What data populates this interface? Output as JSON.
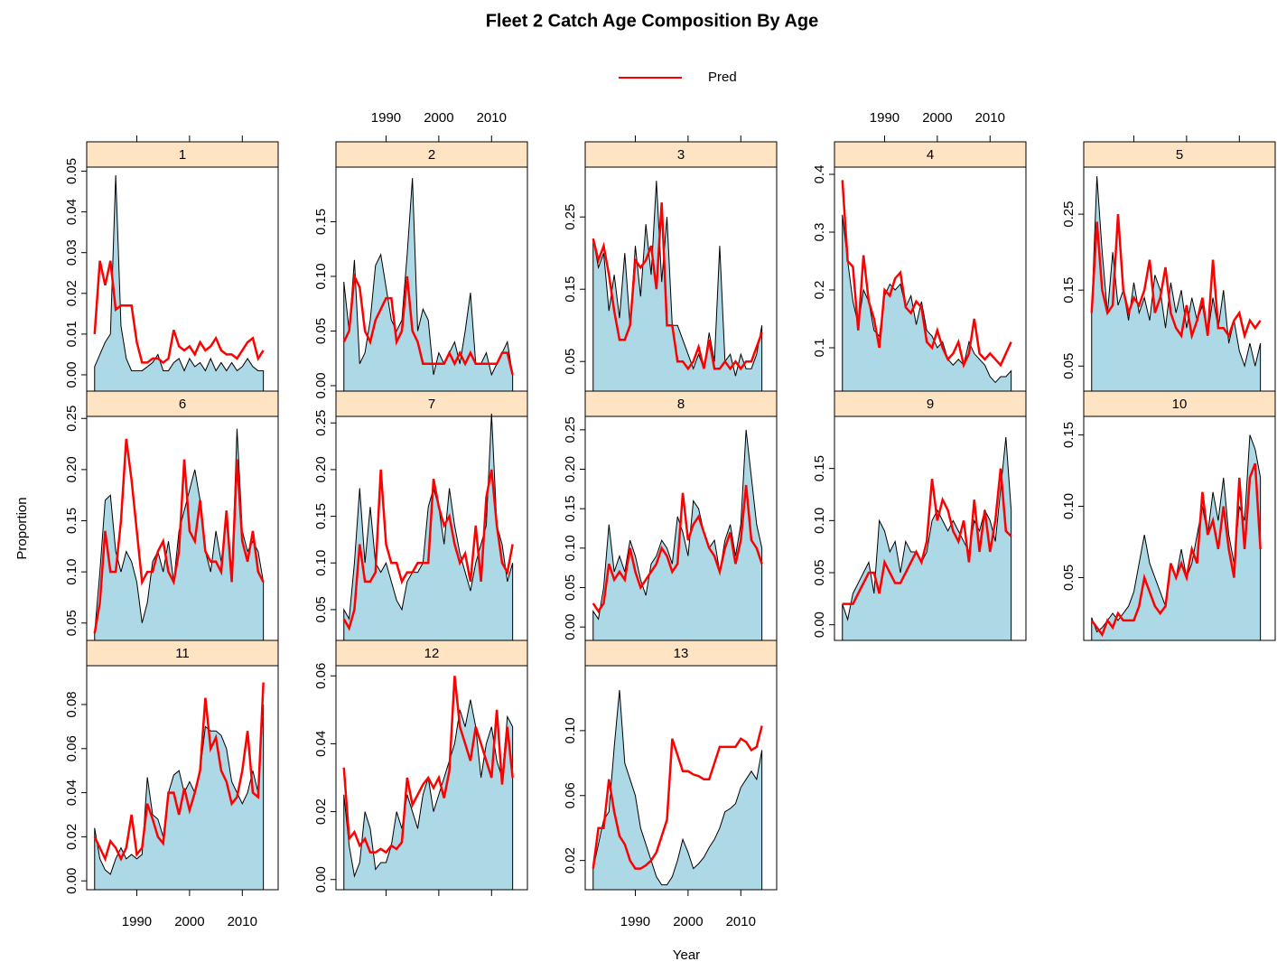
{
  "chart_data": {
    "type": "lattice-area-line",
    "title": "Fleet 2  Catch Age Composition By Age",
    "xlabel": "Year",
    "ylabel": "Proportion",
    "legend": {
      "name": "Pred",
      "color": "#ff0000",
      "position": "top"
    },
    "fill": "#add8e6",
    "x": [
      1982,
      1983,
      1984,
      1985,
      1986,
      1987,
      1988,
      1989,
      1990,
      1991,
      1992,
      1993,
      1994,
      1995,
      1996,
      1997,
      1998,
      1999,
      2000,
      2001,
      2002,
      2003,
      2004,
      2005,
      2006,
      2007,
      2008,
      2009,
      2010,
      2011,
      2012,
      2013,
      2014
    ],
    "xlim": [
      1980.5,
      2016.8
    ],
    "xticks": [
      1990,
      2000,
      2010
    ],
    "panels": [
      {
        "label": "1",
        "ylim": [
          -0.004,
          0.051
        ],
        "yticks": [
          {
            "value": 0,
            "label": "0.00"
          },
          0.01,
          0.02,
          0.03,
          0.04,
          0.05
        ],
        "observed": [
          0.002,
          0.005,
          0.008,
          0.01,
          0.049,
          0.012,
          0.004,
          0.001,
          0.001,
          0.001,
          0.002,
          0.003,
          0.005,
          0.001,
          0.001,
          0.003,
          0.004,
          0.001,
          0.004,
          0.002,
          0.003,
          0.001,
          0.004,
          0.001,
          0.003,
          0.001,
          0.003,
          0.001,
          0.002,
          0.004,
          0.002,
          0.001,
          0.001
        ],
        "predicted": [
          0.01,
          0.028,
          0.022,
          0.028,
          0.016,
          0.017,
          0.017,
          0.017,
          0.008,
          0.003,
          0.003,
          0.004,
          0.004,
          0.003,
          0.004,
          0.011,
          0.007,
          0.006,
          0.007,
          0.005,
          0.008,
          0.006,
          0.007,
          0.009,
          0.006,
          0.005,
          0.005,
          0.004,
          0.006,
          0.008,
          0.009,
          0.004,
          0.006
        ]
      },
      {
        "label": "2",
        "ylim": [
          -0.005,
          0.2
        ],
        "yticks": [
          {
            "value": 0,
            "label": "0.00"
          },
          0.05,
          {
            "value": 0.1,
            "label": "0.10"
          },
          0.15
        ],
        "observed": [
          0.095,
          0.05,
          0.115,
          0.02,
          0.03,
          0.06,
          0.11,
          0.12,
          0.09,
          0.06,
          0.05,
          0.06,
          0.12,
          0.19,
          0.05,
          0.07,
          0.06,
          0.01,
          0.03,
          0.02,
          0.03,
          0.04,
          0.02,
          0.05,
          0.085,
          0.02,
          0.02,
          0.03,
          0.01,
          0.02,
          0.03,
          0.04,
          0.01
        ],
        "predicted": [
          0.04,
          0.05,
          0.1,
          0.09,
          0.05,
          0.04,
          0.06,
          0.07,
          0.08,
          0.08,
          0.04,
          0.05,
          0.1,
          0.05,
          0.04,
          0.02,
          0.02,
          0.02,
          0.02,
          0.02,
          0.03,
          0.02,
          0.03,
          0.02,
          0.03,
          0.02,
          0.02,
          0.02,
          0.02,
          0.02,
          0.03,
          0.03,
          0.01
        ]
      },
      {
        "label": "3",
        "ylim": [
          0.009,
          0.319
        ],
        "yticks": [
          0.05,
          0.15,
          0.25
        ],
        "observed": [
          0.22,
          0.18,
          0.2,
          0.12,
          0.17,
          0.11,
          0.2,
          0.1,
          0.21,
          0.14,
          0.24,
          0.17,
          0.3,
          0.16,
          0.25,
          0.1,
          0.1,
          0.08,
          0.06,
          0.04,
          0.06,
          0.04,
          0.09,
          0.05,
          0.21,
          0.05,
          0.06,
          0.03,
          0.06,
          0.04,
          0.04,
          0.06,
          0.1
        ],
        "predicted": [
          0.22,
          0.19,
          0.21,
          0.17,
          0.12,
          0.08,
          0.08,
          0.1,
          0.19,
          0.18,
          0.19,
          0.21,
          0.15,
          0.27,
          0.1,
          0.1,
          0.05,
          0.05,
          0.04,
          0.05,
          0.07,
          0.04,
          0.08,
          0.04,
          0.04,
          0.05,
          0.04,
          0.05,
          0.04,
          0.05,
          0.05,
          0.07,
          0.09
        ]
      },
      {
        "label": "4",
        "ylim": [
          0.025,
          0.4125
        ],
        "yticks": [
          0.1,
          0.2,
          0.3,
          0.4
        ],
        "observed": [
          0.33,
          0.25,
          0.18,
          0.14,
          0.2,
          0.18,
          0.13,
          0.12,
          0.19,
          0.21,
          0.2,
          0.21,
          0.17,
          0.19,
          0.14,
          0.18,
          0.13,
          0.12,
          0.1,
          0.11,
          0.08,
          0.07,
          0.08,
          0.07,
          0.11,
          0.09,
          0.08,
          0.07,
          0.05,
          0.04,
          0.05,
          0.05,
          0.06
        ],
        "predicted": [
          0.39,
          0.25,
          0.24,
          0.13,
          0.26,
          0.18,
          0.15,
          0.1,
          0.2,
          0.19,
          0.22,
          0.23,
          0.17,
          0.16,
          0.18,
          0.17,
          0.11,
          0.1,
          0.13,
          0.1,
          0.08,
          0.09,
          0.11,
          0.07,
          0.09,
          0.15,
          0.09,
          0.08,
          0.09,
          0.08,
          0.07,
          0.09,
          0.11
        ]
      },
      {
        "label": "5",
        "ylim": [
          0.017,
          0.312
        ],
        "yticks": [
          0.05,
          0.15,
          0.25
        ],
        "observed": [
          0.12,
          0.3,
          0.2,
          0.12,
          0.2,
          0.13,
          0.15,
          0.11,
          0.16,
          0.12,
          0.14,
          0.11,
          0.17,
          0.15,
          0.1,
          0.16,
          0.12,
          0.15,
          0.1,
          0.14,
          0.11,
          0.13,
          0.09,
          0.14,
          0.1,
          0.15,
          0.08,
          0.11,
          0.07,
          0.05,
          0.08,
          0.05,
          0.08
        ],
        "predicted": [
          0.12,
          0.24,
          0.15,
          0.12,
          0.13,
          0.25,
          0.15,
          0.12,
          0.14,
          0.13,
          0.15,
          0.19,
          0.12,
          0.14,
          0.18,
          0.12,
          0.1,
          0.09,
          0.13,
          0.09,
          0.11,
          0.14,
          0.09,
          0.19,
          0.1,
          0.1,
          0.09,
          0.11,
          0.12,
          0.09,
          0.11,
          0.1,
          0.11
        ]
      },
      {
        "label": "6",
        "ylim": [
          0.033,
          0.252
        ],
        "yticks": [
          0.05,
          {
            "value": 0.1,
            "label": "0.10"
          },
          0.15,
          {
            "value": 0.2,
            "label": "0.20"
          },
          0.25
        ],
        "observed": [
          0.04,
          0.1,
          0.17,
          0.175,
          0.12,
          0.1,
          0.12,
          0.11,
          0.09,
          0.05,
          0.07,
          0.11,
          0.12,
          0.1,
          0.13,
          0.09,
          0.14,
          0.16,
          0.18,
          0.2,
          0.17,
          0.12,
          0.1,
          0.14,
          0.11,
          0.15,
          0.09,
          0.24,
          0.14,
          0.12,
          0.13,
          0.12,
          0.09
        ],
        "predicted": [
          0.04,
          0.07,
          0.14,
          0.1,
          0.1,
          0.15,
          0.23,
          0.19,
          0.14,
          0.09,
          0.1,
          0.1,
          0.12,
          0.13,
          0.1,
          0.09,
          0.12,
          0.21,
          0.14,
          0.13,
          0.17,
          0.12,
          0.11,
          0.11,
          0.1,
          0.16,
          0.09,
          0.21,
          0.13,
          0.11,
          0.14,
          0.1,
          0.09
        ]
      },
      {
        "label": "7",
        "ylim": [
          0.017,
          0.257
        ],
        "yticks": [
          0.05,
          {
            "value": 0.1,
            "label": "0.10"
          },
          0.15,
          {
            "value": 0.2,
            "label": "0.20"
          },
          0.25
        ],
        "observed": [
          0.05,
          0.04,
          0.1,
          0.18,
          0.1,
          0.16,
          0.1,
          0.09,
          0.1,
          0.08,
          0.06,
          0.05,
          0.08,
          0.09,
          0.09,
          0.1,
          0.16,
          0.18,
          0.16,
          0.12,
          0.18,
          0.14,
          0.11,
          0.09,
          0.07,
          0.1,
          0.12,
          0.14,
          0.26,
          0.14,
          0.12,
          0.08,
          0.1
        ],
        "predicted": [
          0.04,
          0.03,
          0.05,
          0.12,
          0.08,
          0.08,
          0.09,
          0.2,
          0.12,
          0.1,
          0.1,
          0.08,
          0.09,
          0.09,
          0.1,
          0.1,
          0.1,
          0.19,
          0.16,
          0.14,
          0.15,
          0.12,
          0.1,
          0.11,
          0.08,
          0.14,
          0.08,
          0.17,
          0.2,
          0.14,
          0.1,
          0.09,
          0.12
        ]
      },
      {
        "label": "8",
        "ylim": [
          -0.017,
          0.267
        ],
        "yticks": [
          {
            "value": 0,
            "label": "0.00"
          },
          0.05,
          {
            "value": 0.1,
            "label": "0.10"
          },
          0.15,
          {
            "value": 0.2,
            "label": "0.20"
          },
          0.25
        ],
        "observed": [
          0.02,
          0.01,
          0.05,
          0.13,
          0.07,
          0.09,
          0.07,
          0.11,
          0.09,
          0.06,
          0.04,
          0.08,
          0.09,
          0.11,
          0.1,
          0.08,
          0.14,
          0.12,
          0.09,
          0.16,
          0.15,
          0.12,
          0.1,
          0.11,
          0.07,
          0.11,
          0.13,
          0.09,
          0.13,
          0.25,
          0.19,
          0.13,
          0.1
        ],
        "predicted": [
          0.03,
          0.02,
          0.03,
          0.08,
          0.06,
          0.07,
          0.06,
          0.1,
          0.07,
          0.05,
          0.06,
          0.07,
          0.08,
          0.1,
          0.09,
          0.07,
          0.08,
          0.17,
          0.11,
          0.13,
          0.14,
          0.12,
          0.1,
          0.09,
          0.07,
          0.1,
          0.12,
          0.08,
          0.11,
          0.18,
          0.11,
          0.1,
          0.08
        ]
      },
      {
        "label": "9",
        "ylim": [
          -0.015,
          0.2
        ],
        "yticks": [
          {
            "value": 0,
            "label": "0.00"
          },
          0.05,
          {
            "value": 0.1,
            "label": "0.10"
          },
          0.15
        ],
        "observed": [
          0.02,
          0.005,
          0.03,
          0.04,
          0.05,
          0.06,
          0.03,
          0.1,
          0.09,
          0.07,
          0.08,
          0.05,
          0.08,
          0.07,
          0.07,
          0.06,
          0.07,
          0.1,
          0.11,
          0.1,
          0.09,
          0.1,
          0.09,
          0.08,
          0.07,
          0.1,
          0.09,
          0.11,
          0.1,
          0.08,
          0.13,
          0.18,
          0.11
        ],
        "predicted": [
          0.02,
          0.02,
          0.02,
          0.03,
          0.04,
          0.05,
          0.05,
          0.03,
          0.06,
          0.05,
          0.04,
          0.04,
          0.05,
          0.06,
          0.07,
          0.06,
          0.08,
          0.14,
          0.1,
          0.12,
          0.11,
          0.09,
          0.08,
          0.1,
          0.06,
          0.12,
          0.07,
          0.11,
          0.07,
          0.1,
          0.15,
          0.09,
          0.085
        ]
      },
      {
        "label": "10",
        "ylim": [
          0.006,
          0.163
        ],
        "yticks": [
          0.05,
          {
            "value": 0.1,
            "label": "0.10"
          },
          0.15
        ],
        "observed": [
          0.022,
          0.012,
          0.015,
          0.02,
          0.025,
          0.02,
          0.025,
          0.03,
          0.04,
          0.06,
          0.08,
          0.06,
          0.05,
          0.04,
          0.03,
          0.06,
          0.05,
          0.07,
          0.05,
          0.06,
          0.08,
          0.1,
          0.08,
          0.11,
          0.09,
          0.12,
          0.08,
          0.06,
          0.1,
          0.09,
          0.15,
          0.14,
          0.12
        ],
        "predicted": [
          0.02,
          0.015,
          0.01,
          0.02,
          0.015,
          0.025,
          0.02,
          0.02,
          0.02,
          0.03,
          0.05,
          0.04,
          0.03,
          0.025,
          0.03,
          0.06,
          0.05,
          0.06,
          0.05,
          0.07,
          0.06,
          0.11,
          0.08,
          0.09,
          0.07,
          0.1,
          0.07,
          0.05,
          0.12,
          0.07,
          0.12,
          0.13,
          0.07
        ]
      },
      {
        "label": "11",
        "ylim": [
          -0.004,
          0.0976
        ],
        "yticks": [
          {
            "value": 0,
            "label": "0.00"
          },
          0.02,
          0.04,
          0.06,
          0.08
        ],
        "observed": [
          0.024,
          0.01,
          0.005,
          0.003,
          0.01,
          0.015,
          0.01,
          0.012,
          0.01,
          0.012,
          0.047,
          0.03,
          0.028,
          0.02,
          0.04,
          0.048,
          0.05,
          0.04,
          0.045,
          0.04,
          0.05,
          0.07,
          0.068,
          0.068,
          0.066,
          0.06,
          0.045,
          0.04,
          0.035,
          0.04,
          0.05,
          0.04,
          0.08
        ],
        "predicted": [
          0.02,
          0.015,
          0.01,
          0.018,
          0.015,
          0.01,
          0.015,
          0.03,
          0.012,
          0.015,
          0.035,
          0.028,
          0.02,
          0.017,
          0.04,
          0.04,
          0.03,
          0.042,
          0.032,
          0.04,
          0.05,
          0.083,
          0.06,
          0.065,
          0.05,
          0.045,
          0.035,
          0.038,
          0.05,
          0.068,
          0.04,
          0.038,
          0.09
        ]
      },
      {
        "label": "12",
        "ylim": [
          -0.003,
          0.063
        ],
        "yticks": [
          {
            "value": 0,
            "label": "0.00"
          },
          0.02,
          0.04,
          0.06
        ],
        "observed": [
          0.025,
          0.01,
          0.001,
          0.005,
          0.02,
          0.015,
          0.003,
          0.005,
          0.005,
          0.01,
          0.02,
          0.015,
          0.025,
          0.02,
          0.015,
          0.025,
          0.03,
          0.02,
          0.025,
          0.03,
          0.035,
          0.04,
          0.05,
          0.045,
          0.053,
          0.045,
          0.03,
          0.04,
          0.045,
          0.035,
          0.03,
          0.048,
          0.045
        ],
        "predicted": [
          0.033,
          0.012,
          0.014,
          0.01,
          0.012,
          0.008,
          0.008,
          0.009,
          0.008,
          0.01,
          0.009,
          0.011,
          0.03,
          0.022,
          0.025,
          0.028,
          0.03,
          0.027,
          0.03,
          0.024,
          0.032,
          0.06,
          0.045,
          0.04,
          0.035,
          0.045,
          0.04,
          0.035,
          0.03,
          0.05,
          0.028,
          0.045,
          0.03
        ]
      },
      {
        "label": "13",
        "ylim": [
          0.002,
          0.14
        ],
        "yticks": [
          0.02,
          0.06,
          {
            "value": 0.1,
            "label": "0.10"
          }
        ],
        "observed": [
          0.015,
          0.03,
          0.045,
          0.05,
          0.09,
          0.125,
          0.08,
          0.07,
          0.06,
          0.04,
          0.03,
          0.02,
          0.01,
          0.005,
          0.005,
          0.01,
          0.02,
          0.033,
          0.025,
          0.015,
          0.018,
          0.022,
          0.028,
          0.033,
          0.04,
          0.05,
          0.052,
          0.055,
          0.065,
          0.07,
          0.075,
          0.07,
          0.088
        ],
        "predicted": [
          0.015,
          0.04,
          0.04,
          0.07,
          0.05,
          0.035,
          0.03,
          0.02,
          0.015,
          0.015,
          0.017,
          0.02,
          0.025,
          0.035,
          0.045,
          0.095,
          0.085,
          0.075,
          0.075,
          0.073,
          0.072,
          0.07,
          0.07,
          0.08,
          0.09,
          0.09,
          0.09,
          0.09,
          0.095,
          0.093,
          0.088,
          0.09,
          0.103
        ]
      }
    ]
  }
}
